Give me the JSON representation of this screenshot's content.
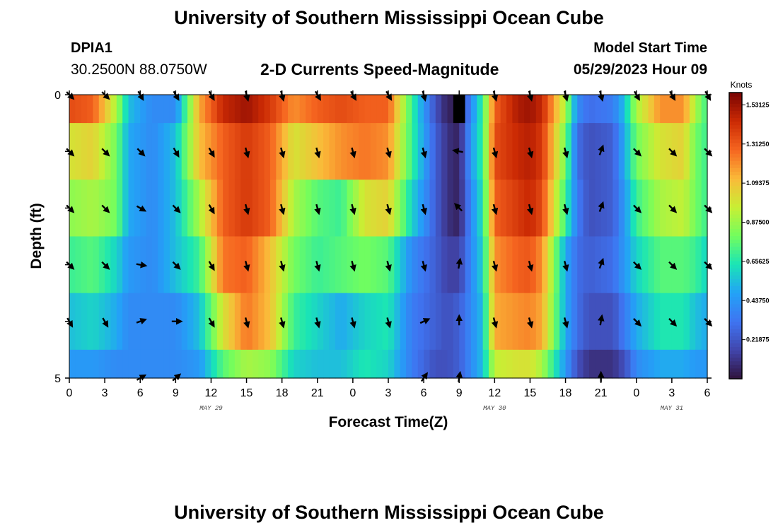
{
  "header": {
    "title": "University of Southern Mississippi Ocean Cube",
    "station_id": "DPIA1",
    "location": "30.2500N  88.0750W",
    "subtitle": "2-D Currents Speed-Magnitude",
    "model_start_label": "Model Start Time",
    "model_start_value": "05/29/2023 Hour 09"
  },
  "footer": {
    "title": "University of Southern Mississippi Ocean Cube"
  },
  "chart_data": {
    "type": "heatmap",
    "title": "2-D Currents Speed-Magnitude",
    "xlabel": "Forecast Time(Z)",
    "ylabel": "Depth (ft)",
    "x_tick_labels": [
      "0",
      "3",
      "6",
      "9",
      "12",
      "15",
      "18",
      "21",
      "0",
      "3",
      "6",
      "9",
      "12",
      "15",
      "18",
      "21",
      "0",
      "3",
      "6"
    ],
    "x_tick_hours": [
      0,
      3,
      6,
      9,
      12,
      15,
      18,
      21,
      24,
      27,
      30,
      33,
      36,
      39,
      42,
      45,
      48,
      51,
      54
    ],
    "date_labels": [
      {
        "text": "MAY 29",
        "hour": 12
      },
      {
        "text": "MAY 30",
        "hour": 36
      },
      {
        "text": "MAY 31",
        "hour": 51
      }
    ],
    "x_range_hours": [
      0,
      54
    ],
    "y_tick_labels": [
      "0",
      "5"
    ],
    "y_range_ft": [
      0,
      5
    ],
    "depths_ft": [
      0,
      1,
      2,
      3,
      4,
      5
    ],
    "colorbar": {
      "unit": "Knots",
      "min": 0,
      "max": 1.6,
      "tick_values": [
        1.53125,
        1.3125,
        1.09375,
        0.875,
        0.65625,
        0.4375,
        0.21875
      ],
      "tick_labels": [
        "1.53125",
        "1.31250",
        "1.09375",
        "0.87500",
        "0.65625",
        "0.43750",
        "0.21875"
      ]
    },
    "speed_profile": {
      "hours": [
        0,
        2,
        4,
        5,
        7,
        9,
        11,
        13,
        15,
        17,
        19,
        21,
        23,
        25,
        27,
        29,
        31,
        32,
        33,
        34,
        35,
        36,
        38,
        39,
        40,
        42,
        43,
        44,
        46,
        47,
        48,
        50,
        52,
        53,
        54
      ],
      "values_by_depth": [
        [
          1.35,
          1.3,
          0.9,
          0.55,
          0.4,
          0.4,
          1.15,
          1.45,
          1.53,
          1.4,
          1.2,
          1.3,
          1.35,
          1.3,
          1.3,
          0.7,
          0.2,
          0.05,
          0.05,
          0.4,
          0.7,
          1.3,
          1.5,
          1.53,
          1.45,
          0.9,
          0.4,
          0.3,
          0.35,
          0.55,
          0.9,
          1.2,
          1.2,
          0.9,
          0.7
        ],
        [
          1.0,
          1.05,
          0.8,
          0.5,
          0.4,
          0.55,
          1.1,
          1.3,
          1.4,
          1.3,
          1.0,
          1.1,
          1.2,
          1.25,
          1.2,
          0.7,
          0.25,
          0.1,
          0.05,
          0.45,
          0.7,
          1.35,
          1.45,
          1.48,
          1.4,
          0.8,
          0.3,
          0.2,
          0.25,
          0.5,
          0.8,
          1.0,
          1.05,
          0.8,
          0.7
        ],
        [
          0.85,
          0.9,
          0.8,
          0.5,
          0.4,
          0.55,
          0.9,
          1.3,
          1.4,
          1.3,
          0.9,
          0.75,
          0.7,
          1.0,
          1.05,
          0.6,
          0.25,
          0.1,
          0.05,
          0.4,
          0.65,
          1.3,
          1.4,
          1.45,
          1.35,
          0.7,
          0.35,
          0.2,
          0.25,
          0.45,
          0.7,
          0.9,
          0.95,
          0.8,
          0.7
        ],
        [
          0.7,
          0.75,
          0.6,
          0.45,
          0.4,
          0.55,
          0.7,
          1.25,
          1.3,
          1.1,
          0.8,
          0.7,
          0.75,
          0.8,
          0.75,
          0.4,
          0.25,
          0.15,
          0.15,
          0.4,
          0.6,
          1.2,
          1.3,
          1.32,
          1.2,
          0.5,
          0.3,
          0.25,
          0.3,
          0.45,
          0.6,
          0.75,
          0.75,
          0.7,
          0.6
        ],
        [
          0.55,
          0.6,
          0.5,
          0.4,
          0.4,
          0.4,
          0.55,
          1.0,
          1.25,
          1.1,
          0.7,
          0.6,
          0.5,
          0.6,
          0.65,
          0.35,
          0.25,
          0.2,
          0.25,
          0.4,
          0.55,
          1.15,
          1.2,
          1.22,
          1.15,
          0.5,
          0.3,
          0.2,
          0.2,
          0.35,
          0.5,
          0.65,
          0.65,
          0.55,
          0.5
        ],
        [
          0.45,
          0.45,
          0.4,
          0.4,
          0.4,
          0.4,
          0.45,
          0.75,
          0.9,
          0.85,
          0.6,
          0.55,
          0.55,
          0.65,
          0.6,
          0.35,
          0.2,
          0.2,
          0.25,
          0.4,
          0.55,
          0.95,
          1.0,
          1.0,
          0.9,
          0.45,
          0.2,
          0.1,
          0.1,
          0.2,
          0.4,
          0.5,
          0.5,
          0.45,
          0.45
        ]
      ]
    },
    "null_cell": {
      "hour_start": 32.5,
      "hour_end": 33.5,
      "depth_start_ft": 0,
      "depth_end_ft": 0.5
    },
    "vectors": {
      "hours": [
        0,
        3,
        6,
        9,
        12,
        15,
        18,
        21,
        24,
        27,
        30,
        33,
        36,
        39,
        42,
        45,
        48,
        51,
        54
      ],
      "depth_rows": [
        0,
        1,
        2,
        3,
        4,
        5
      ],
      "direction_deg": [
        [
          135,
          135,
          150,
          150,
          150,
          165,
          165,
          150,
          150,
          150,
          165,
          null,
          165,
          165,
          165,
          165,
          150,
          150,
          150
        ],
        [
          135,
          135,
          135,
          150,
          150,
          165,
          165,
          165,
          165,
          165,
          165,
          280,
          165,
          165,
          165,
          20,
          135,
          135,
          135
        ],
        [
          135,
          135,
          120,
          135,
          150,
          165,
          165,
          165,
          165,
          165,
          165,
          315,
          165,
          165,
          165,
          20,
          135,
          135,
          135
        ],
        [
          135,
          135,
          100,
          135,
          150,
          165,
          165,
          165,
          165,
          165,
          165,
          10,
          165,
          165,
          165,
          20,
          135,
          135,
          135
        ],
        [
          150,
          150,
          70,
          90,
          150,
          165,
          165,
          165,
          165,
          165,
          65,
          0,
          165,
          165,
          165,
          10,
          135,
          135,
          135
        ],
        [
          null,
          null,
          60,
          50,
          null,
          null,
          null,
          null,
          null,
          null,
          35,
          10,
          null,
          null,
          null,
          0,
          null,
          null,
          null
        ]
      ]
    }
  }
}
